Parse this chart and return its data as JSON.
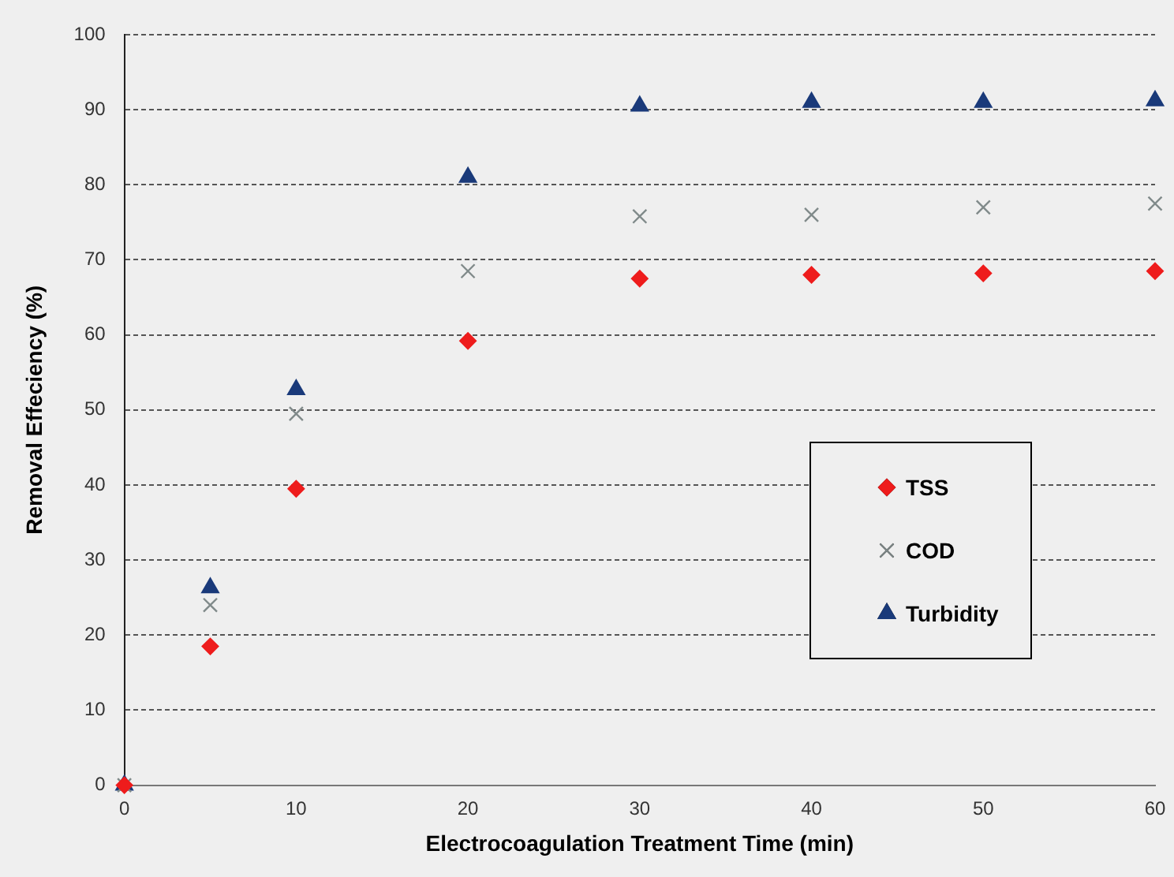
{
  "chart_data": {
    "type": "scatter",
    "xlabel": "Electrocoagulation Treatment Time (min)",
    "ylabel": "Removal Effeciency (%)",
    "x": [
      0,
      5,
      10,
      20,
      30,
      40,
      50,
      60
    ],
    "series": [
      {
        "name": "TSS",
        "color": "#ee1c1c",
        "marker": "diamond",
        "values": [
          0,
          18.5,
          39.5,
          59.2,
          67.5,
          68,
          68.2,
          68.5
        ]
      },
      {
        "name": "COD",
        "color": "#808a8a",
        "marker": "cross",
        "values": [
          0,
          24,
          49.5,
          68.5,
          75.8,
          76,
          77,
          77.5
        ]
      },
      {
        "name": "Turbidity",
        "color": "#1a3a7a",
        "marker": "triangle",
        "values": [
          0,
          26.3,
          52.7,
          81,
          90.5,
          91,
          91,
          91.2
        ]
      }
    ],
    "xlim": [
      0,
      60
    ],
    "xticks": [
      0,
      10,
      20,
      30,
      40,
      50,
      60
    ],
    "ylim": [
      0,
      100
    ],
    "yticks": [
      0,
      10,
      20,
      30,
      40,
      50,
      60,
      70,
      80,
      90,
      100
    ],
    "grid": "y",
    "legend": "right"
  }
}
